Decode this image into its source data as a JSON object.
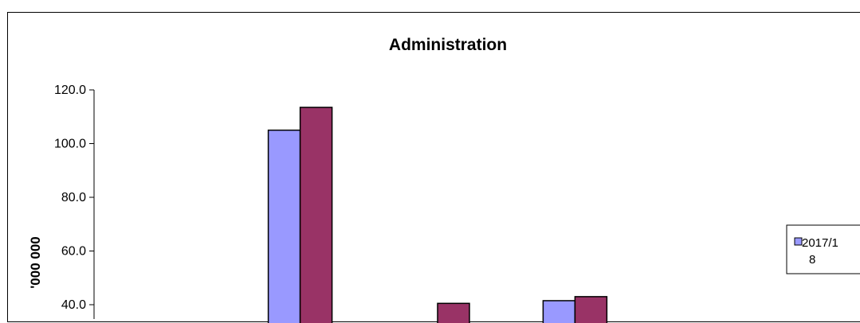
{
  "chart_data": {
    "type": "bar",
    "title": "Administration",
    "ylabel": "'000 000",
    "ylim": [
      0,
      120
    ],
    "ytick_labels": [
      "40.0",
      "60.0",
      "80.0",
      "100.0",
      "120.0"
    ],
    "yticks": [
      40,
      60,
      80,
      100,
      120
    ],
    "categories": [
      "",
      "",
      "",
      "",
      ""
    ],
    "series": [
      {
        "name": "2017/18",
        "color": "#9999ff",
        "values": [
          null,
          105.0,
          null,
          41.5,
          null
        ]
      },
      {
        "color": "#993366",
        "values": [
          null,
          113.5,
          40.5,
          43.0,
          null
        ]
      }
    ],
    "legend": {
      "position": "right",
      "entries": [
        "2017/1",
        "8"
      ]
    },
    "grid": false
  }
}
